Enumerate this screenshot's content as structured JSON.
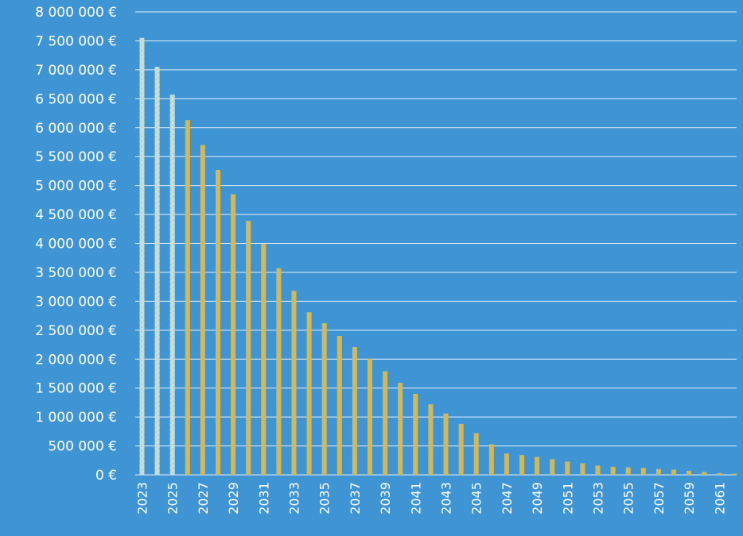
{
  "colors": {
    "background": "#3f95d4",
    "gridline": "#ffffff",
    "bar_primary": "#d4b858",
    "bar_highlight": "#c6dfe3",
    "bar_highlight_speckle": "#bfc98f",
    "text": "#ffffff"
  },
  "chart_data": {
    "type": "bar",
    "title": "",
    "xlabel": "",
    "ylabel": "",
    "ylim": [
      0,
      8000000
    ],
    "ytick_values": [
      0,
      500000,
      1000000,
      1500000,
      2000000,
      2500000,
      3000000,
      3500000,
      4000000,
      4500000,
      5000000,
      5500000,
      6000000,
      6500000,
      7000000,
      7500000,
      8000000
    ],
    "ytick_labels": [
      "0 €",
      "500 000 €",
      "1 000 000 €",
      "1 500 000 €",
      "2 000 000 €",
      "2 500 000 €",
      "3 000 000 €",
      "3 500 000 €",
      "4 000 000 €",
      "4 500 000 €",
      "5 000 000 €",
      "5 500 000 €",
      "6 000 000 €",
      "6 500 000 €",
      "7 000 000 €",
      "7 500 000 €",
      "8 000 000 €"
    ],
    "xtick_labels": [
      "2023",
      "2025",
      "2027",
      "2029",
      "2031",
      "2033",
      "2035",
      "2037",
      "2039",
      "2041",
      "2043",
      "2045",
      "2047",
      "2049",
      "2051",
      "2053",
      "2055",
      "2057",
      "2059",
      "2061"
    ],
    "grid": true,
    "legend": "none",
    "highlighted_categories": [
      "2023",
      "2024",
      "2025"
    ],
    "categories": [
      "2023",
      "2024",
      "2025",
      "2026",
      "2027",
      "2028",
      "2029",
      "2030",
      "2031",
      "2032",
      "2033",
      "2034",
      "2035",
      "2036",
      "2037",
      "2038",
      "2039",
      "2040",
      "2041",
      "2042",
      "2043",
      "2044",
      "2045",
      "2046",
      "2047",
      "2048",
      "2049",
      "2050",
      "2051",
      "2052",
      "2053",
      "2054",
      "2055",
      "2056",
      "2057",
      "2058",
      "2059",
      "2060",
      "2061",
      "2062"
    ],
    "values": [
      7550000,
      7050000,
      6570000,
      6130000,
      5700000,
      5270000,
      4850000,
      4390000,
      3990000,
      3570000,
      3180000,
      2810000,
      2620000,
      2400000,
      2210000,
      2010000,
      1790000,
      1590000,
      1400000,
      1220000,
      1060000,
      880000,
      720000,
      530000,
      370000,
      340000,
      310000,
      270000,
      230000,
      200000,
      160000,
      140000,
      130000,
      120000,
      100000,
      90000,
      70000,
      50000,
      30000,
      20000
    ]
  }
}
